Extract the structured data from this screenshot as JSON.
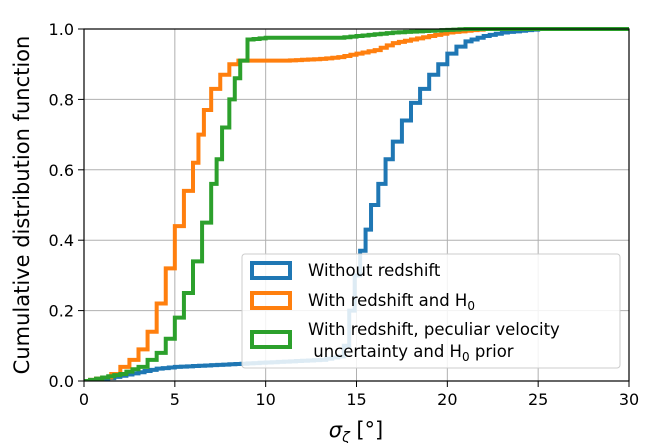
{
  "chart_data": {
    "type": "line",
    "step": true,
    "title": "",
    "xlabel": "σζ [°]",
    "ylabel": "Cumulative distribution function",
    "xlim": [
      0,
      30
    ],
    "ylim": [
      0,
      1
    ],
    "xticks": [
      0,
      5,
      10,
      15,
      20,
      25,
      30
    ],
    "yticks": [
      0.0,
      0.2,
      0.4,
      0.6,
      0.8,
      1.0
    ],
    "xtick_labels": [
      "0",
      "5",
      "10",
      "15",
      "20",
      "25",
      "30"
    ],
    "ytick_labels": [
      "0.0",
      "0.2",
      "0.4",
      "0.6",
      "0.8",
      "1.0"
    ],
    "grid": true,
    "legend_position": "lower-right",
    "series": [
      {
        "name": "Without redshift",
        "color": "#1f77b4",
        "points": [
          [
            0,
            0
          ],
          [
            1,
            0.005
          ],
          [
            2,
            0.015
          ],
          [
            3,
            0.025
          ],
          [
            4,
            0.035
          ],
          [
            5,
            0.04
          ],
          [
            7,
            0.045
          ],
          [
            9,
            0.05
          ],
          [
            11,
            0.055
          ],
          [
            13,
            0.06
          ],
          [
            14,
            0.07
          ],
          [
            14.3,
            0.1
          ],
          [
            14.6,
            0.2
          ],
          [
            14.9,
            0.3
          ],
          [
            15.2,
            0.37
          ],
          [
            15.5,
            0.43
          ],
          [
            15.8,
            0.5
          ],
          [
            16.2,
            0.56
          ],
          [
            16.6,
            0.63
          ],
          [
            17,
            0.68
          ],
          [
            17.5,
            0.74
          ],
          [
            18,
            0.79
          ],
          [
            18.5,
            0.83
          ],
          [
            19,
            0.87
          ],
          [
            19.5,
            0.9
          ],
          [
            20,
            0.93
          ],
          [
            20.5,
            0.95
          ],
          [
            21,
            0.965
          ],
          [
            22,
            0.98
          ],
          [
            23,
            0.99
          ],
          [
            24,
            0.995
          ],
          [
            25,
            1.0
          ],
          [
            30,
            1.0
          ]
        ]
      },
      {
        "name": "With redshift and H0",
        "color": "#ff7f0e",
        "points": [
          [
            0,
            0
          ],
          [
            1,
            0.01
          ],
          [
            1.5,
            0.02
          ],
          [
            2,
            0.04
          ],
          [
            2.5,
            0.06
          ],
          [
            3,
            0.09
          ],
          [
            3.5,
            0.14
          ],
          [
            4,
            0.22
          ],
          [
            4.5,
            0.32
          ],
          [
            5,
            0.44
          ],
          [
            5.5,
            0.54
          ],
          [
            6,
            0.62
          ],
          [
            6.3,
            0.7
          ],
          [
            6.6,
            0.77
          ],
          [
            7,
            0.83
          ],
          [
            7.5,
            0.87
          ],
          [
            8,
            0.9
          ],
          [
            8.5,
            0.91
          ],
          [
            11,
            0.91
          ],
          [
            13,
            0.915
          ],
          [
            14,
            0.92
          ],
          [
            15,
            0.93
          ],
          [
            16,
            0.94
          ],
          [
            17,
            0.96
          ],
          [
            18,
            0.97
          ],
          [
            19,
            0.98
          ],
          [
            20,
            0.99
          ],
          [
            21,
            0.995
          ],
          [
            22,
            1.0
          ],
          [
            30,
            1.0
          ]
        ]
      },
      {
        "name": "With redshift, peculiar velocity uncertainty and H0 prior",
        "color": "#2ca02c",
        "points": [
          [
            0,
            0
          ],
          [
            1,
            0.01
          ],
          [
            2,
            0.02
          ],
          [
            3,
            0.04
          ],
          [
            3.5,
            0.06
          ],
          [
            4,
            0.08
          ],
          [
            4.5,
            0.12
          ],
          [
            5,
            0.18
          ],
          [
            5.5,
            0.25
          ],
          [
            6,
            0.34
          ],
          [
            6.5,
            0.45
          ],
          [
            7,
            0.56
          ],
          [
            7.3,
            0.63
          ],
          [
            7.6,
            0.72
          ],
          [
            8,
            0.8
          ],
          [
            8.3,
            0.86
          ],
          [
            8.6,
            0.91
          ],
          [
            9,
            0.97
          ],
          [
            10,
            0.975
          ],
          [
            12,
            0.975
          ],
          [
            14,
            0.975
          ],
          [
            15,
            0.98
          ],
          [
            17,
            0.99
          ],
          [
            19,
            0.995
          ],
          [
            21,
            1.0
          ],
          [
            30,
            1.0
          ]
        ]
      }
    ],
    "legend_labels": [
      [
        "Without redshift"
      ],
      [
        "With redshift and H",
        "0"
      ],
      [
        "With redshift, peculiar velocity",
        " uncertainty and H",
        "0",
        " prior"
      ]
    ]
  }
}
